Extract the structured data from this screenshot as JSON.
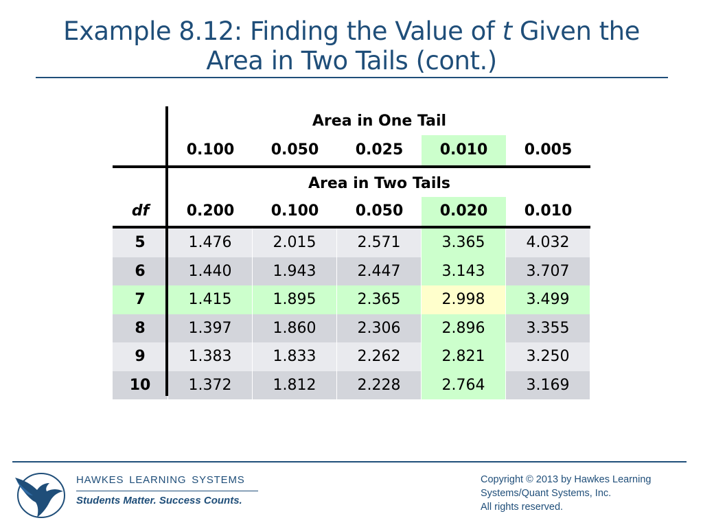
{
  "title": {
    "part1": "Example 8.12: Finding the Value of ",
    "variable": "t",
    "part2": " Given the",
    "line2": "Area in Two Tails (cont.)"
  },
  "table": {
    "one_tail_header": "Area in One Tail",
    "one_tail_values": [
      "0.100",
      "0.050",
      "0.025",
      "0.010",
      "0.005"
    ],
    "two_tails_header": "Area in Two Tails",
    "df_label": "df",
    "two_tails_values": [
      "0.200",
      "0.100",
      "0.050",
      "0.020",
      "0.010"
    ],
    "rows": [
      {
        "df": "5",
        "values": [
          "1.476",
          "2.015",
          "2.571",
          "3.365",
          "4.032"
        ]
      },
      {
        "df": "6",
        "values": [
          "1.440",
          "1.943",
          "2.447",
          "3.143",
          "3.707"
        ]
      },
      {
        "df": "7",
        "values": [
          "1.415",
          "1.895",
          "2.365",
          "2.998",
          "3.499"
        ]
      },
      {
        "df": "8",
        "values": [
          "1.397",
          "1.860",
          "2.306",
          "2.896",
          "3.355"
        ]
      },
      {
        "df": "9",
        "values": [
          "1.383",
          "1.833",
          "2.262",
          "2.821",
          "3.250"
        ]
      },
      {
        "df": "10",
        "values": [
          "1.372",
          "1.812",
          "2.228",
          "2.764",
          "3.169"
        ]
      }
    ],
    "highlight_column_index": 3,
    "highlight_row_index": 2,
    "colors": {
      "highlight": "#ccffcc",
      "target": "#ffffcc",
      "row_light": "#e9eaee",
      "row_dark": "#d3d5db"
    }
  },
  "footer": {
    "brand": "HAWKES  LEARNING  SYSTEMS",
    "tagline": "Students Matter. Success Counts.",
    "copyright_lines": [
      "Copyright © 2013 by Hawkes Learning",
      "Systems/Quant Systems, Inc.",
      "All rights reserved."
    ],
    "logo_icon": "hawk-logo-icon"
  },
  "theme": {
    "primary": "#1f4e79"
  }
}
